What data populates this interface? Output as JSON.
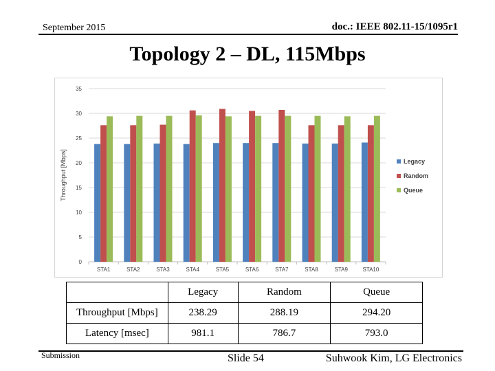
{
  "header": {
    "date": "September 2015",
    "doc_id": "doc.: IEEE 802.11-15/1095r1"
  },
  "title": "Topology 2 – DL, 115Mbps",
  "chart_data": {
    "type": "bar",
    "categories": [
      "STA1",
      "STA2",
      "STA3",
      "STA4",
      "STA5",
      "STA6",
      "STA7",
      "STA8",
      "STA9",
      "STA10"
    ],
    "series": [
      {
        "name": "Legacy",
        "color": "#4f81bd",
        "values": [
          23.8,
          23.8,
          23.9,
          23.8,
          24.0,
          24.0,
          24.0,
          23.9,
          23.9,
          24.1
        ]
      },
      {
        "name": "Random",
        "color": "#c0504d",
        "values": [
          27.6,
          27.6,
          27.7,
          30.6,
          30.9,
          30.5,
          30.7,
          27.6,
          27.6,
          27.6
        ]
      },
      {
        "name": "Queue",
        "color": "#9bbb59",
        "values": [
          29.4,
          29.5,
          29.5,
          29.6,
          29.4,
          29.5,
          29.5,
          29.5,
          29.4,
          29.5
        ]
      }
    ],
    "ylabel": "Throughput [Mbps]",
    "xlabel": "",
    "ylim": [
      0,
      35
    ],
    "yticks": [
      0,
      5,
      10,
      15,
      20,
      25,
      30,
      35
    ],
    "grid": true,
    "legend": "right"
  },
  "table": {
    "headers": [
      "",
      "Legacy",
      "Random",
      "Queue"
    ],
    "rows": [
      [
        "Throughput [Mbps]",
        "238.29",
        "288.19",
        "294.20"
      ],
      [
        "Latency [msec]",
        "981.1",
        "786.7",
        "793.0"
      ]
    ]
  },
  "footer": {
    "submission": "Submission",
    "slide": "Slide 54",
    "author": "Suhwook Kim, LG Electronics"
  }
}
